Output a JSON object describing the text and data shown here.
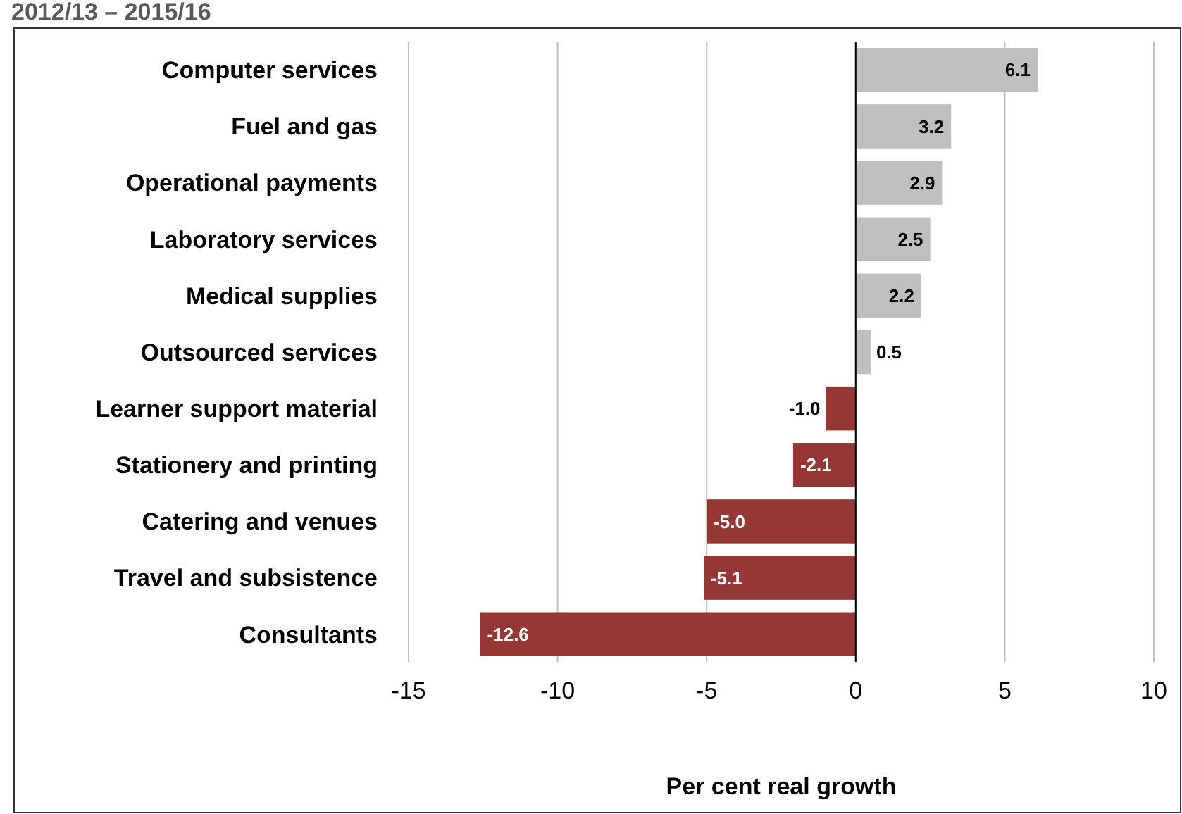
{
  "chart_data": {
    "type": "bar",
    "orientation": "horizontal",
    "title": "2012/13 – 2015/16",
    "xlabel": "Per cent real growth",
    "categories": [
      "Computer services",
      "Fuel and gas",
      "Operational payments",
      "Laboratory services",
      "Medical supplies",
      "Outsourced services",
      "Learner support material",
      "Stationery and printing",
      "Catering and venues",
      "Travel and subsistence",
      "Consultants"
    ],
    "values": [
      6.1,
      3.2,
      2.9,
      2.5,
      2.2,
      0.5,
      -1.0,
      -2.1,
      -5.0,
      -5.1,
      -12.6
    ],
    "value_labels": [
      "6.1",
      "3.2",
      "2.9",
      "2.5",
      "2.2",
      "0.5",
      "-1.0",
      "-2.1",
      "-5.0",
      "-5.1",
      "-12.6"
    ],
    "colors": [
      "#bfbfbf",
      "#bfbfbf",
      "#bfbfbf",
      "#bfbfbf",
      "#bfbfbf",
      "#bfbfbf",
      "#953735",
      "#953735",
      "#953735",
      "#953735",
      "#953735"
    ],
    "xlim": [
      -15,
      10
    ],
    "xticks": [
      -15,
      -10,
      -5,
      0,
      5,
      10
    ],
    "grid": "x"
  }
}
